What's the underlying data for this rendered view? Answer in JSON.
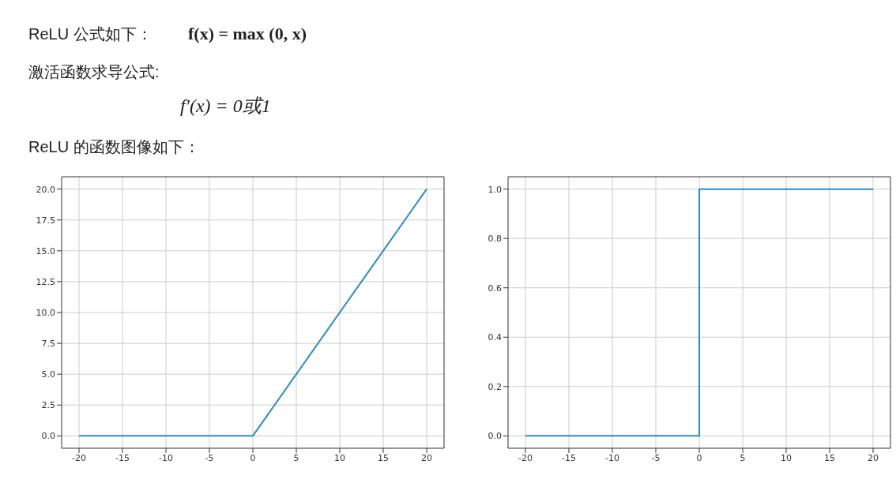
{
  "chart_data": [
    {
      "type": "other",
      "annotations": [
        "ReLU 公式如下：",
        "f(x) = max (0, x)",
        "激活函数求导公式:",
        "f′(x) = 0或1",
        "ReLU 的函数图像如下："
      ]
    },
    {
      "type": "line",
      "x": [
        -20,
        0,
        20
      ],
      "series": [
        {
          "color": "#2b8cc4",
          "values": [
            0,
            0,
            20
          ]
        }
      ],
      "xlim": [
        -22,
        22
      ],
      "xticks": [
        -20,
        -15,
        -10,
        -5,
        0,
        5,
        10,
        15,
        20
      ],
      "ylim": [
        -1,
        21
      ],
      "yticks": [
        {
          "value": 0,
          "label": "0.0"
        },
        {
          "value": 2.5,
          "label": "2.5"
        },
        {
          "value": 5,
          "label": "5.0"
        },
        {
          "value": 7.5,
          "label": "7.5"
        },
        {
          "value": 10,
          "label": "10.0"
        },
        {
          "value": 12.5,
          "label": "12.5"
        },
        {
          "value": 15,
          "label": "15.0"
        },
        {
          "value": 17.5,
          "label": "17.5"
        },
        {
          "value": 20,
          "label": "20.0"
        }
      ],
      "grid": true
    },
    {
      "type": "step",
      "x": [
        -20,
        0,
        20
      ],
      "series": [
        {
          "color": "#2b8cc4",
          "values": [
            0,
            1,
            1
          ]
        }
      ],
      "xlim": [
        -22,
        22
      ],
      "xticks": [
        -20,
        -15,
        -10,
        -5,
        0,
        5,
        10,
        15,
        20
      ],
      "ylim": [
        -0.05,
        1.05
      ],
      "yticks": [
        {
          "value": 0,
          "label": "0.0"
        },
        {
          "value": 0.2,
          "label": "0.2"
        },
        {
          "value": 0.4,
          "label": "0.4"
        },
        {
          "value": 0.6,
          "label": "0.6"
        },
        {
          "value": 0.8,
          "label": "0.8"
        },
        {
          "value": 1,
          "label": "1.0"
        }
      ],
      "grid": true
    }
  ]
}
